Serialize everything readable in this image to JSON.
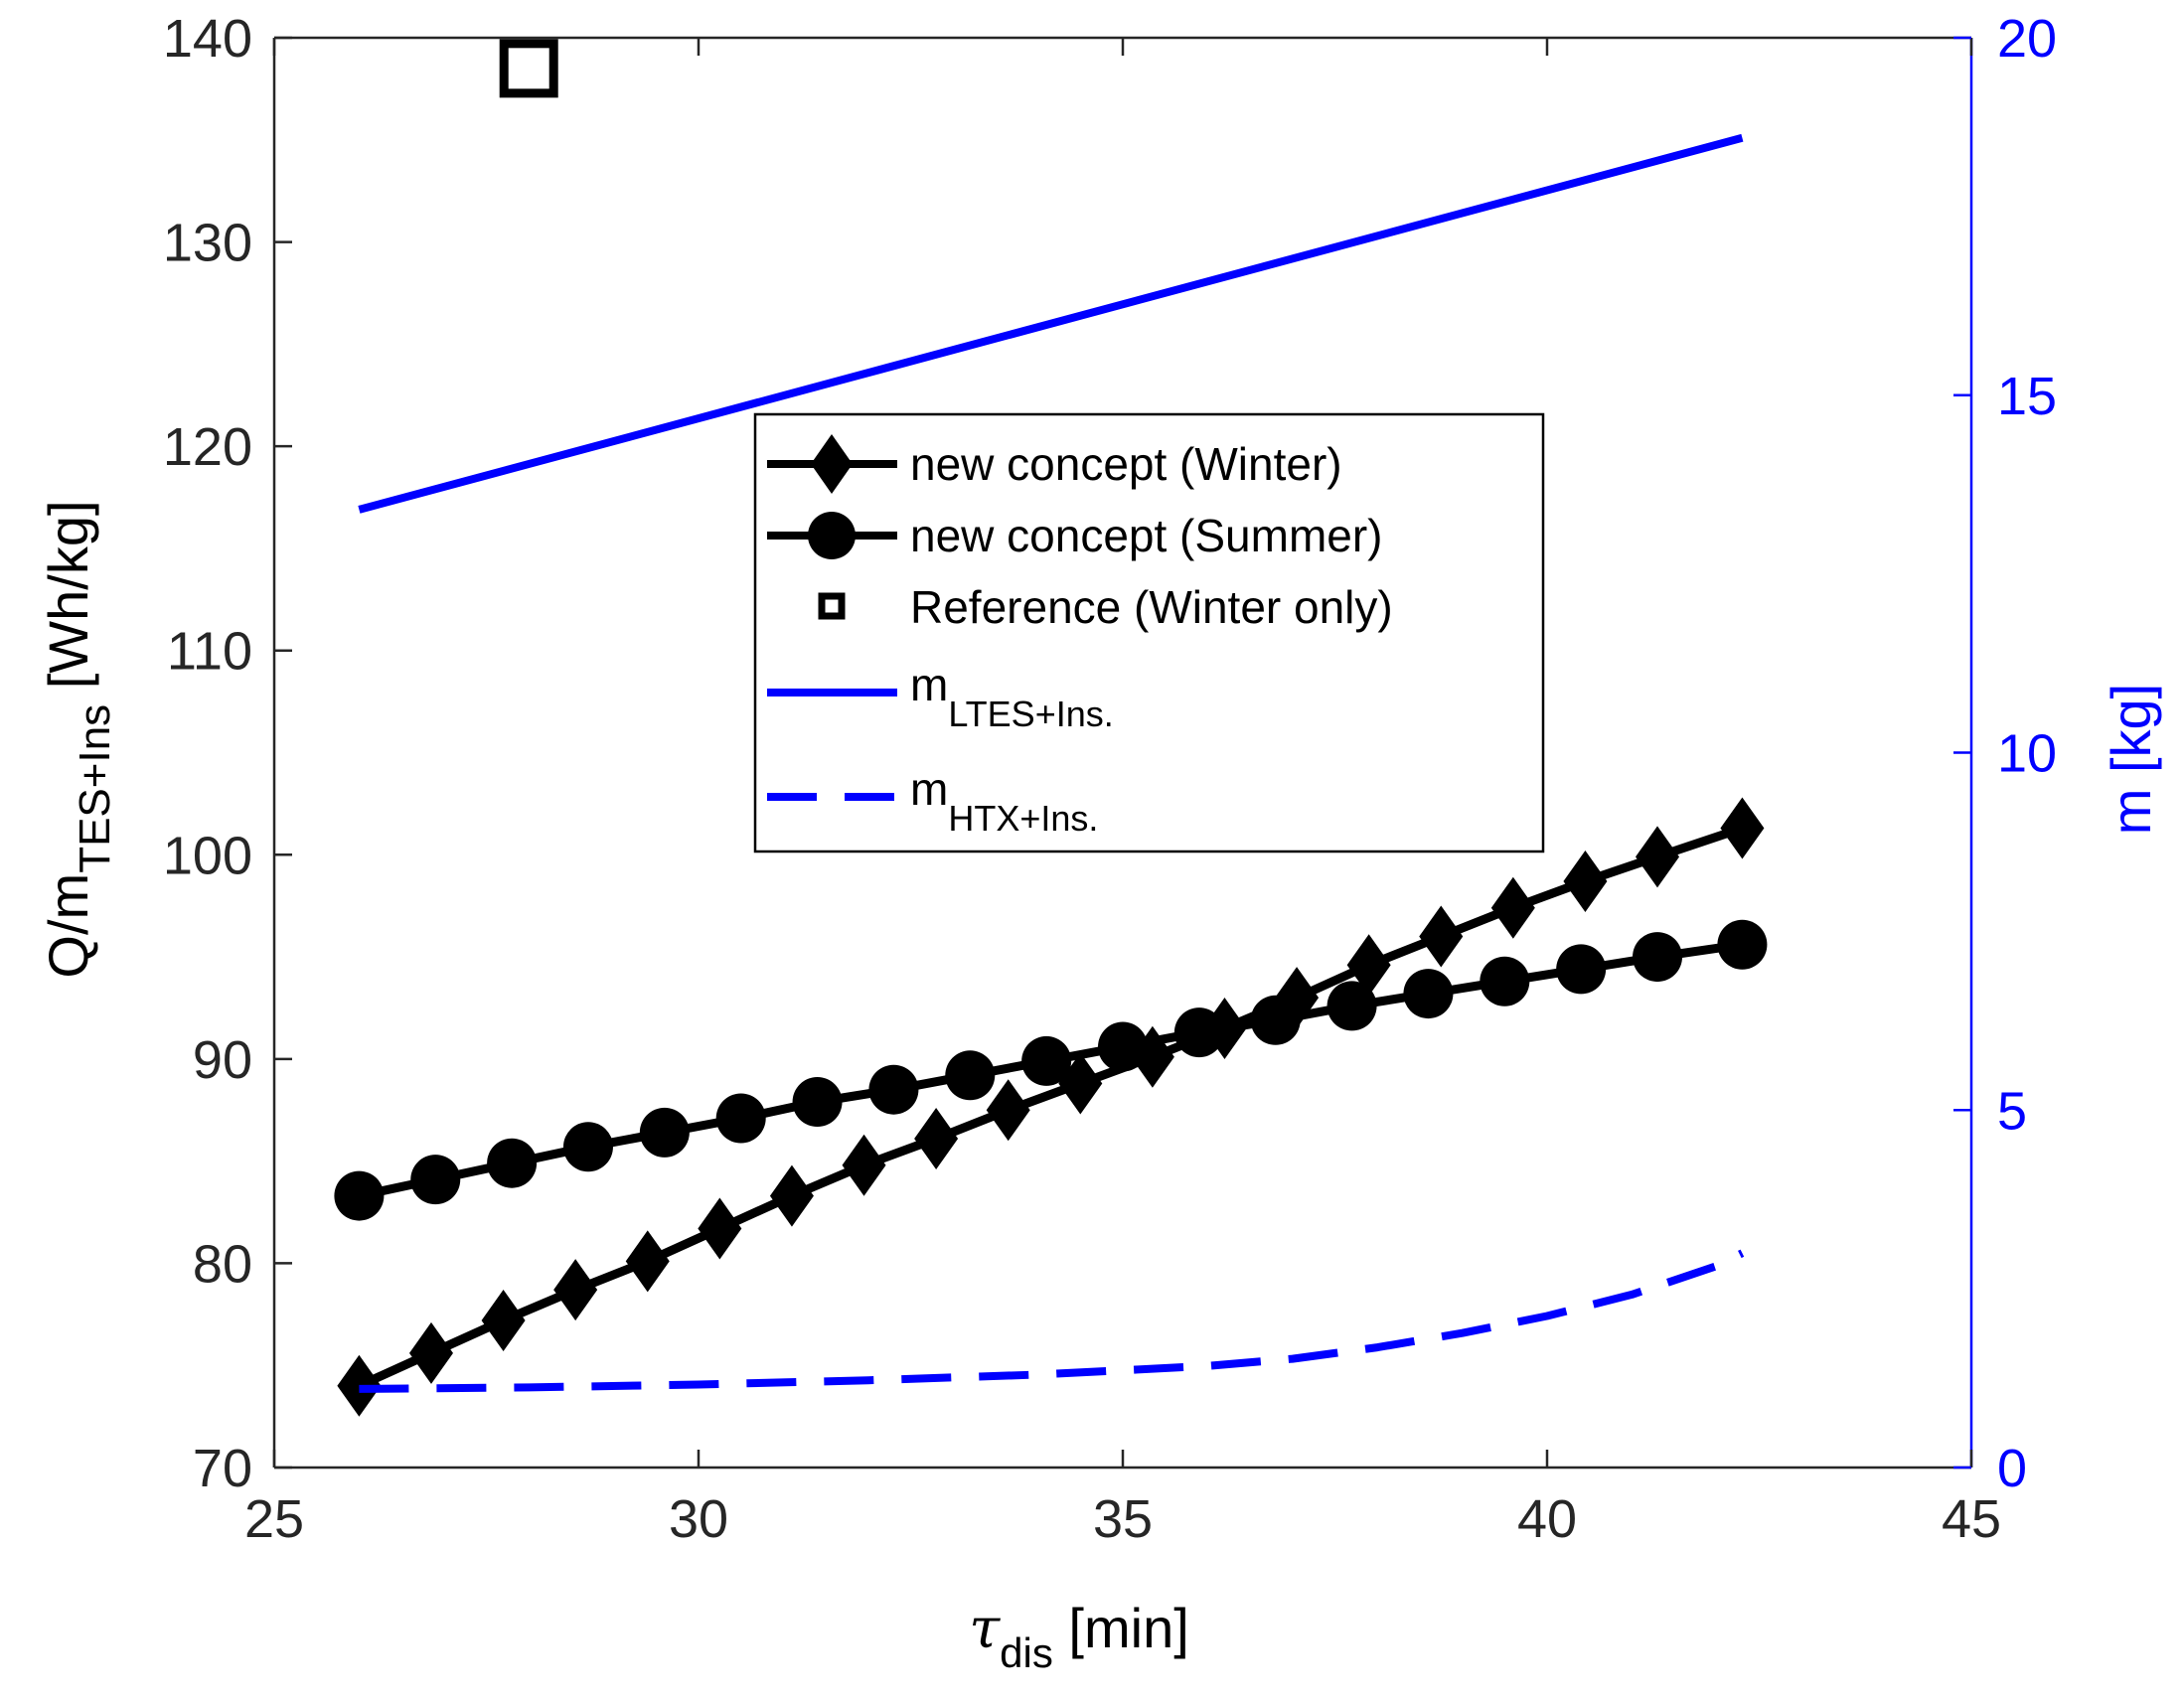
{
  "chart_data": {
    "type": "line",
    "title": "",
    "x_axis": {
      "label_symbol": "τ",
      "label_subscript": "dis",
      "label_unit": " [min]",
      "range": [
        25,
        45
      ],
      "ticks": [
        25,
        30,
        35,
        40,
        45
      ]
    },
    "y_axis_left": {
      "label_prefix": "Q/m",
      "label_subscript": "TES+Ins",
      "label_unit": " [Wh/kg]",
      "range": [
        70,
        140
      ],
      "ticks": [
        70,
        80,
        90,
        100,
        110,
        120,
        130,
        140
      ],
      "color": "#000000"
    },
    "y_axis_right": {
      "label": "m [kg]",
      "range": [
        0,
        20
      ],
      "ticks": [
        0,
        5,
        10,
        15,
        20
      ],
      "color": "#0000ff"
    },
    "series": [
      {
        "name": "new concept (Winter)",
        "axis": "left",
        "marker": "diamond",
        "color": "#000000",
        "x": [
          26.0,
          26.85,
          27.7,
          28.55,
          29.4,
          30.25,
          31.1,
          31.95,
          32.8,
          33.65,
          34.5,
          35.35,
          36.2,
          37.05,
          37.9,
          38.75,
          39.6,
          40.45,
          41.3,
          42.3
        ],
        "y": [
          74.0,
          75.6,
          77.2,
          78.7,
          80.1,
          81.7,
          83.3,
          84.8,
          86.1,
          87.5,
          88.8,
          90.1,
          91.5,
          93.0,
          94.6,
          96.0,
          97.4,
          98.7,
          99.9,
          101.3
        ]
      },
      {
        "name": "new concept (Summer)",
        "axis": "left",
        "marker": "circle",
        "color": "#000000",
        "x": [
          26.0,
          26.9,
          27.8,
          28.7,
          29.6,
          30.5,
          31.4,
          32.3,
          33.2,
          34.1,
          35.0,
          35.9,
          36.8,
          37.7,
          38.6,
          39.5,
          40.4,
          41.3,
          42.3
        ],
        "y": [
          83.3,
          84.1,
          84.9,
          85.7,
          86.4,
          87.1,
          87.9,
          88.5,
          89.2,
          89.9,
          90.6,
          91.3,
          91.9,
          92.6,
          93.2,
          93.8,
          94.4,
          95.0,
          95.6
        ]
      },
      {
        "name": "Reference (Winter only)",
        "axis": "left",
        "marker": "square",
        "color": "#000000",
        "x": [
          28.0
        ],
        "y": [
          138.5
        ]
      },
      {
        "name_main": "m",
        "name_sub": "LTES+Ins.",
        "axis": "right",
        "style": "solid",
        "color": "#0000ff",
        "x": [
          26.0,
          42.3
        ],
        "y": [
          13.4,
          18.6
        ]
      },
      {
        "name_main": "m",
        "name_sub": "HTX+Ins.",
        "axis": "right",
        "style": "dashed",
        "color": "#0000ff",
        "x": [
          26.0,
          28.0,
          30.0,
          32.0,
          34.0,
          36.0,
          37.0,
          38.0,
          39.0,
          40.0,
          41.0,
          42.0,
          42.3
        ],
        "y": [
          1.1,
          1.12,
          1.16,
          1.22,
          1.3,
          1.42,
          1.52,
          1.68,
          1.88,
          2.12,
          2.42,
          2.82,
          3.0
        ]
      }
    ],
    "legend_position": "center"
  }
}
